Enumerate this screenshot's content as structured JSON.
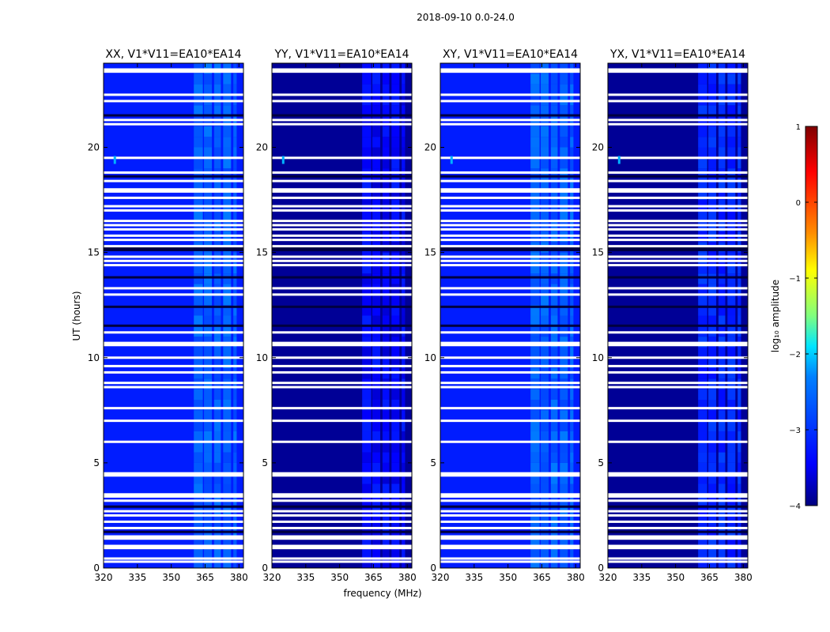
{
  "chart_data": {
    "type": "heatmap",
    "suptitle": "2018-09-10 0.0-24.0",
    "xlabel": "frequency (MHz)",
    "ylabel": "UT (hours)",
    "xlim": [
      320,
      382
    ],
    "ylim": [
      0,
      24
    ],
    "xticks": [
      320,
      335,
      350,
      365,
      380
    ],
    "yticks": [
      0,
      5,
      10,
      15,
      20
    ],
    "colorbar": {
      "label": "log₁₀ amplitude",
      "range": [
        -4,
        1
      ],
      "ticks": [
        "1",
        "0",
        "−1",
        "−2",
        "−3",
        "−4"
      ],
      "colors": [
        "#7f0000",
        "#ff0000",
        "#ff8c00",
        "#ffff00",
        "#7fff7f",
        "#00e5ff",
        "#0080ff",
        "#0000ff",
        "#00007f"
      ]
    },
    "panels": [
      {
        "title": "XX, V1*V11=EA10*EA14",
        "background_level": -3.2,
        "band_level": -2.6,
        "transient_hour": 19.4,
        "transient_freq": 325
      },
      {
        "title": "YY, V1*V11=EA10*EA14",
        "background_level": -3.9,
        "band_level": -3.4,
        "transient_hour": 19.4,
        "transient_freq": 325
      },
      {
        "title": "XY, V1*V11=EA10*EA14",
        "background_level": -3.2,
        "band_level": -2.6,
        "transient_hour": 19.4,
        "transient_freq": 325
      },
      {
        "title": "YX, V1*V11=EA10*EA14",
        "background_level": -3.9,
        "band_level": -3.1,
        "transient_hour": 19.4,
        "transient_freq": 325
      }
    ],
    "rfi_band_mhz": [
      [
        360,
        364
      ],
      [
        364.5,
        368
      ],
      [
        369,
        372
      ],
      [
        373,
        376.5
      ],
      [
        377.5,
        379
      ]
    ],
    "flagged_hours": [
      0.3,
      0.45,
      0.95,
      1.05,
      1.4,
      1.5,
      1.9,
      2.2,
      2.5,
      2.7,
      3.2,
      3.4,
      3.5,
      4.4,
      4.5,
      6.0,
      7.0,
      7.6,
      8.6,
      8.8,
      9.3,
      9.6,
      10.0,
      10.6,
      10.7,
      11.2,
      13.0,
      13.3,
      14.4,
      14.6,
      14.8,
      15.3,
      15.6,
      15.8,
      16.1,
      16.3,
      16.5,
      17.0,
      17.2,
      17.6,
      17.9,
      18.0,
      18.4,
      18.8,
      19.5,
      21.1,
      21.3,
      22.2,
      22.5,
      23.6,
      23.7
    ],
    "dark_hours": [
      1.7,
      2.9,
      11.5,
      12.4,
      13.8,
      15.1,
      15.2,
      18.6,
      21.5
    ]
  }
}
